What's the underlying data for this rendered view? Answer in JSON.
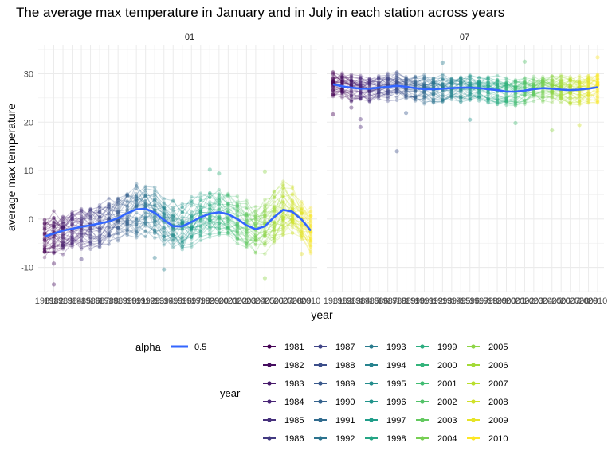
{
  "chart_data": {
    "type": "line",
    "title": "The average max temperature in January and in July in each station across years",
    "xlabel": "year",
    "ylabel": "average max temperature",
    "xlim": [
      1981,
      2010
    ],
    "ylim": [
      -15,
      36
    ],
    "y_ticks": [
      -10,
      0,
      10,
      20,
      30
    ],
    "grid": true,
    "legend_position": "bottom",
    "facets": [
      {
        "label": "01",
        "smooth_values": [
          -3.6,
          -3.0,
          -2.4,
          -2.0,
          -1.6,
          -1.3,
          -0.9,
          -0.5,
          0.2,
          1.2,
          2.0,
          2.1,
          1.3,
          -0.2,
          -1.5,
          -1.5,
          -0.6,
          0.4,
          1.1,
          1.4,
          1.0,
          0.0,
          -1.3,
          -2.1,
          -1.5,
          0.4,
          1.9,
          1.5,
          -0.1,
          -2.4
        ],
        "spread": [
          4.0,
          4.2,
          4.3,
          4.0,
          4.1,
          4.2,
          4.3,
          4.4,
          4.4,
          4.6,
          4.8,
          4.9,
          4.7,
          4.5,
          4.4,
          4.5,
          4.5,
          4.4,
          4.3,
          4.4,
          4.4,
          4.3,
          4.3,
          4.5,
          4.8,
          4.9,
          4.8,
          4.5,
          4.2,
          4.2
        ]
      },
      {
        "label": "07",
        "smooth_values": [
          27.8,
          27.4,
          27.1,
          26.9,
          26.9,
          27.1,
          27.3,
          27.5,
          27.3,
          27.0,
          26.8,
          26.8,
          26.9,
          27.0,
          27.1,
          27.1,
          27.0,
          26.8,
          26.6,
          26.3,
          26.3,
          26.5,
          26.8,
          27.0,
          26.9,
          26.7,
          26.6,
          26.7,
          26.9,
          27.2
        ],
        "spread": [
          2.4,
          2.4,
          2.5,
          2.4,
          2.3,
          2.4,
          2.5,
          2.5,
          2.4,
          2.4,
          2.5,
          2.6,
          2.5,
          2.4,
          2.4,
          2.4,
          2.4,
          2.5,
          2.6,
          2.6,
          2.5,
          2.4,
          2.4,
          2.4,
          2.5,
          2.6,
          2.5,
          2.6,
          2.7,
          2.8
        ]
      }
    ],
    "x_ticks": [
      "1981",
      "1982",
      "1983",
      "1984",
      "1985",
      "1986",
      "1987",
      "1988",
      "1989",
      "1990",
      "1991",
      "1992",
      "1993",
      "1994",
      "1995",
      "1996",
      "1997",
      "1998",
      "1999",
      "2000",
      "2001",
      "2002",
      "2003",
      "2004",
      "2005",
      "2006",
      "2007",
      "2008",
      "2009",
      "2010"
    ],
    "outliers": [
      {
        "facet": 0,
        "year": 1982,
        "value": -13.5
      },
      {
        "facet": 0,
        "year": 1982,
        "value": -9.2
      },
      {
        "facet": 0,
        "year": 1985,
        "value": -8.3
      },
      {
        "facet": 0,
        "year": 1993,
        "value": -8.0
      },
      {
        "facet": 0,
        "year": 1994,
        "value": -10.4
      },
      {
        "facet": 0,
        "year": 1999,
        "value": 10.2
      },
      {
        "facet": 0,
        "year": 2000,
        "value": 9.4
      },
      {
        "facet": 0,
        "year": 2005,
        "value": 9.8
      },
      {
        "facet": 0,
        "year": 2005,
        "value": -12.2
      },
      {
        "facet": 0,
        "year": 2009,
        "value": -7.2
      },
      {
        "facet": 1,
        "year": 1981,
        "value": 21.6
      },
      {
        "facet": 1,
        "year": 1983,
        "value": 23.0
      },
      {
        "facet": 1,
        "year": 1984,
        "value": 19.0
      },
      {
        "facet": 1,
        "year": 1984,
        "value": 20.6
      },
      {
        "facet": 1,
        "year": 1988,
        "value": 14.0
      },
      {
        "facet": 1,
        "year": 1989,
        "value": 21.9
      },
      {
        "facet": 1,
        "year": 1996,
        "value": 20.5
      },
      {
        "facet": 1,
        "year": 2001,
        "value": 19.8
      },
      {
        "facet": 1,
        "year": 2005,
        "value": 18.3
      },
      {
        "facet": 1,
        "year": 2008,
        "value": 19.4
      },
      {
        "facet": 1,
        "year": 1993,
        "value": 32.3
      },
      {
        "facet": 1,
        "year": 2002,
        "value": 32.5
      },
      {
        "facet": 1,
        "year": 2010,
        "value": 33.4
      }
    ],
    "smooth_color": "#3366FF",
    "viridis": [
      "#440154",
      "#482878",
      "#3E4989",
      "#31688E",
      "#26828E",
      "#1F9E89",
      "#35B779",
      "#6DCD59",
      "#B4DE2C",
      "#FDE725"
    ],
    "legend": {
      "alpha_title": "alpha",
      "alpha_label": "0.5",
      "year_title": "year",
      "years": [
        "1981",
        "1982",
        "1983",
        "1984",
        "1985",
        "1986",
        "1987",
        "1988",
        "1989",
        "1990",
        "1991",
        "1992",
        "1993",
        "1994",
        "1995",
        "1996",
        "1997",
        "1998",
        "1999",
        "2000",
        "2001",
        "2002",
        "2003",
        "2004",
        "2005",
        "2006",
        "2007",
        "2008",
        "2009",
        "2010"
      ]
    }
  }
}
